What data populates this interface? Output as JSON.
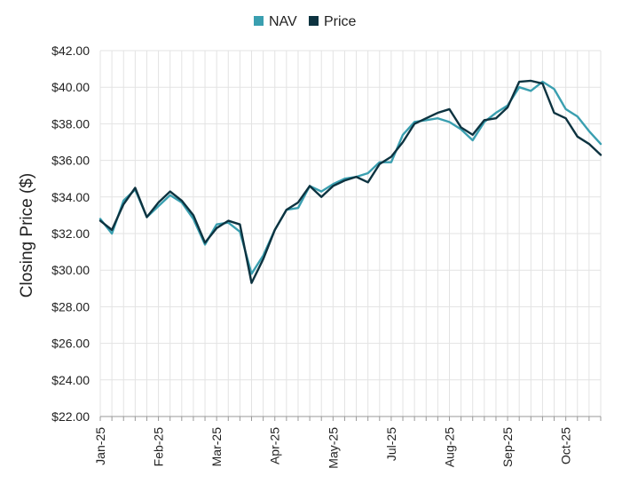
{
  "chart_data": {
    "type": "line",
    "title": "",
    "xlabel": "",
    "ylabel": "Closing Price ($)",
    "ylim": [
      22,
      42
    ],
    "ytick_values": [
      22,
      24,
      26,
      28,
      30,
      32,
      34,
      36,
      38,
      40,
      42
    ],
    "ytick_labels": [
      "$22.00",
      "$24.00",
      "$26.00",
      "$28.00",
      "$30.00",
      "$32.00",
      "$34.00",
      "$36.00",
      "$38.00",
      "$40.00",
      "$42.00"
    ],
    "x_month_labels": [
      "Jan-25",
      "Feb-25",
      "Mar-25",
      "Apr-25",
      "May-25",
      "Jul-25",
      "Aug-25",
      "Sep-25",
      "Oct-25"
    ],
    "x_month_label_index": [
      0,
      5,
      10,
      15,
      20,
      25,
      30,
      35,
      40
    ],
    "grid": true,
    "legend_position": "top-center",
    "x_count": 44,
    "series": [
      {
        "name": "NAV",
        "color": "#3a9fb0",
        "values": [
          32.8,
          32.0,
          33.8,
          34.4,
          32.9,
          33.5,
          34.1,
          33.7,
          32.8,
          31.4,
          32.5,
          32.6,
          32.1,
          29.8,
          30.8,
          32.2,
          33.3,
          33.4,
          34.6,
          34.3,
          34.7,
          35.0,
          35.1,
          35.3,
          35.9,
          35.9,
          37.4,
          38.1,
          38.2,
          38.3,
          38.1,
          37.7,
          37.1,
          38.1,
          38.6,
          39.0,
          40.0,
          39.8,
          40.3,
          39.9,
          38.8,
          38.4,
          37.6,
          36.9
        ]
      },
      {
        "name": "Price",
        "color": "#0d3340",
        "values": [
          32.7,
          32.2,
          33.6,
          34.5,
          32.9,
          33.7,
          34.3,
          33.8,
          33.0,
          31.5,
          32.3,
          32.7,
          32.5,
          29.3,
          30.6,
          32.2,
          33.3,
          33.7,
          34.6,
          34.0,
          34.6,
          34.9,
          35.1,
          34.8,
          35.8,
          36.2,
          37.0,
          38.0,
          38.3,
          38.6,
          38.8,
          37.8,
          37.4,
          38.2,
          38.3,
          38.9,
          40.3,
          40.35,
          40.2,
          38.6,
          38.3,
          37.3,
          36.9,
          36.3
        ]
      }
    ]
  }
}
